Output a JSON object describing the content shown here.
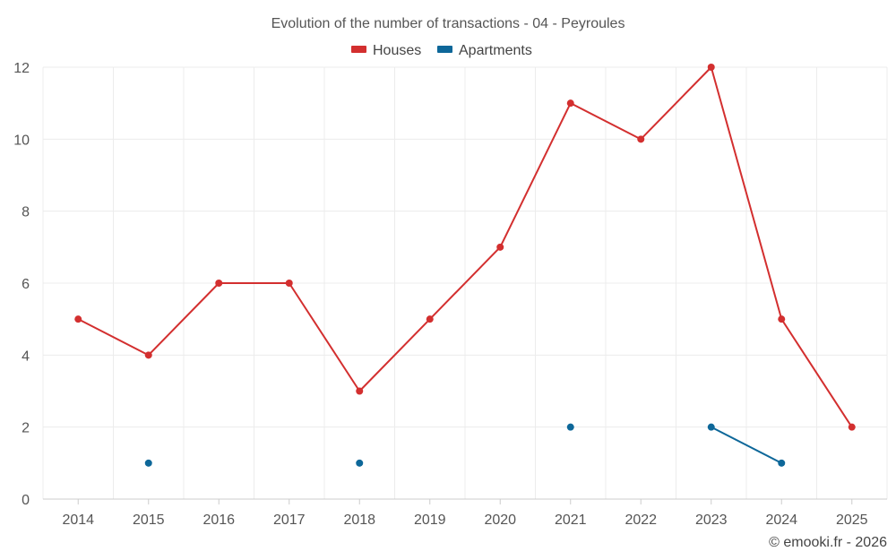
{
  "chart_data": {
    "type": "line",
    "title": "Evolution of the number of transactions - 04 - Peyroules",
    "categories": [
      "2014",
      "2015",
      "2016",
      "2017",
      "2018",
      "2019",
      "2020",
      "2021",
      "2022",
      "2023",
      "2024",
      "2025"
    ],
    "ylim": [
      0,
      12
    ],
    "yticks": [
      0,
      2,
      4,
      6,
      8,
      10,
      12
    ],
    "grid": true,
    "legend_position": "top-center",
    "series": [
      {
        "name": "Houses",
        "color": "#d32f2f",
        "values": [
          5,
          4,
          6,
          6,
          3,
          5,
          7,
          11,
          10,
          12,
          5,
          2
        ]
      },
      {
        "name": "Apartments",
        "color": "#0d6799",
        "values": [
          null,
          1,
          null,
          null,
          1,
          null,
          null,
          2,
          null,
          2,
          1,
          null
        ]
      }
    ],
    "credit": "© emooki.fr - 2026"
  }
}
